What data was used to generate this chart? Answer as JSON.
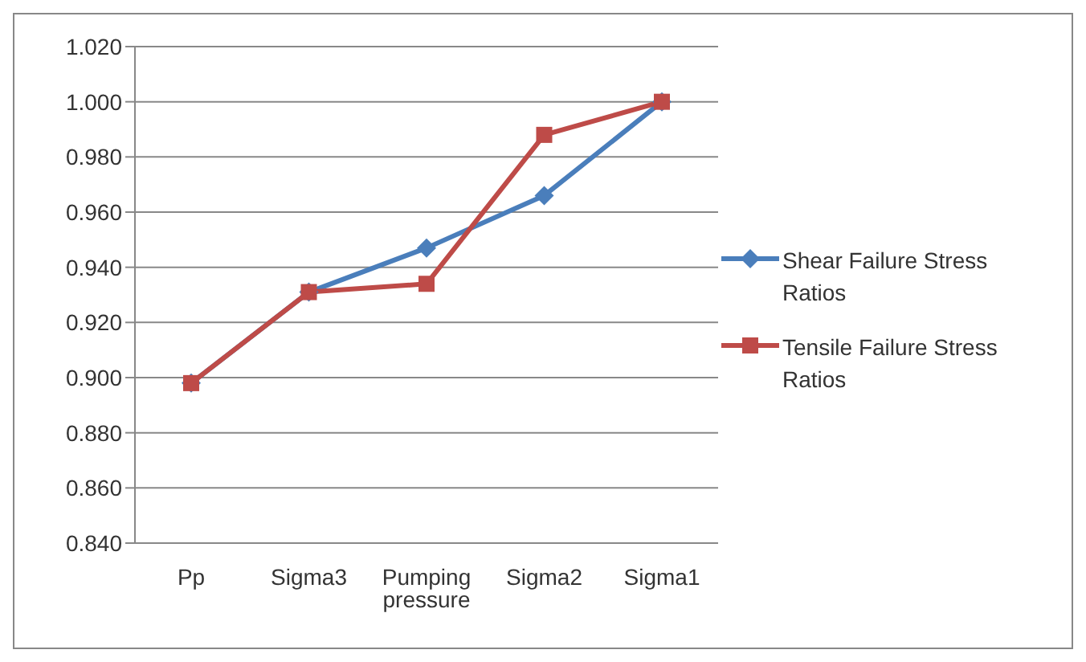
{
  "chart_data": {
    "type": "line",
    "categories": [
      "Pp",
      "Sigma3",
      "Pumping pressure",
      "Sigma2",
      "Sigma1"
    ],
    "series": [
      {
        "name": "Shear Failure Stress Ratios",
        "color": "#4a7ebb",
        "marker": "diamond",
        "values": [
          0.898,
          0.931,
          0.947,
          0.966,
          1.0
        ]
      },
      {
        "name": "Tensile Failure Stress Ratios",
        "color": "#be4b48",
        "marker": "square",
        "values": [
          0.898,
          0.931,
          0.934,
          0.988,
          1.0
        ]
      }
    ],
    "ylim": [
      0.84,
      1.02
    ],
    "yticks": [
      {
        "value": 0.84,
        "label": "0.840"
      },
      {
        "value": 0.86,
        "label": "0.860"
      },
      {
        "value": 0.88,
        "label": "0.880"
      },
      {
        "value": 0.9,
        "label": "0.900"
      },
      {
        "value": 0.92,
        "label": "0.920"
      },
      {
        "value": 0.94,
        "label": "0.940"
      },
      {
        "value": 0.96,
        "label": "0.960"
      },
      {
        "value": 0.98,
        "label": "0.980"
      },
      {
        "value": 1.0,
        "label": "1.000"
      },
      {
        "value": 1.02,
        "label": "1.020"
      }
    ],
    "grid": "y",
    "legend": "right",
    "line_style": "solid"
  }
}
